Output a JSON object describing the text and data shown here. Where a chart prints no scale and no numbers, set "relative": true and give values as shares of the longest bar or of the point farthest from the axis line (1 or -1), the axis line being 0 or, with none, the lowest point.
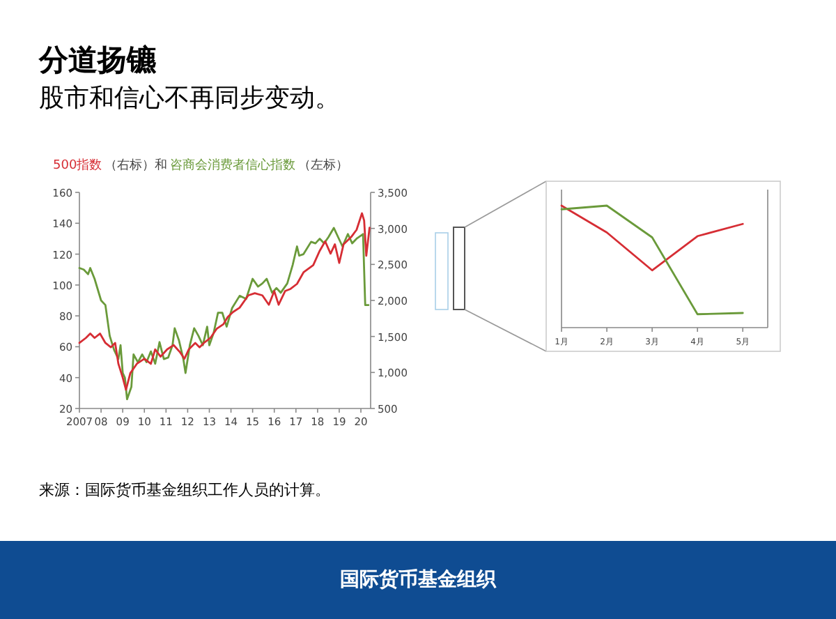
{
  "chart_data": [
    {
      "type": "line",
      "title": "分道扬镳",
      "subtitle": "股市和信心不再同步变动。",
      "legend": "top",
      "annotations": [
        "（右标）和",
        "（左标）",
        "来源：国际货币基金组织工作人员的计算。",
        "国际货币基金组织"
      ],
      "xlim": [
        2007,
        2020.45
      ],
      "xticks": [
        {
          "value": 2007,
          "label": "2007"
        },
        {
          "value": 2008,
          "label": "08"
        },
        {
          "value": 2009,
          "label": "09"
        },
        {
          "value": 2010,
          "label": "10"
        },
        {
          "value": 2011,
          "label": "11"
        },
        {
          "value": 2012,
          "label": "12"
        },
        {
          "value": 2013,
          "label": "13"
        },
        {
          "value": 2014,
          "label": "14"
        },
        {
          "value": 2015,
          "label": "15"
        },
        {
          "value": 2016,
          "label": "16"
        },
        {
          "value": 2017,
          "label": "17"
        },
        {
          "value": 2018,
          "label": "18"
        },
        {
          "value": 2019,
          "label": "19"
        },
        {
          "value": 2020,
          "label": "20"
        }
      ],
      "ylim": [
        20,
        160
      ],
      "yticks": [
        20,
        40,
        60,
        80,
        100,
        120,
        140,
        160
      ],
      "y2lim": [
        500,
        3500
      ],
      "y2ticks": [
        {
          "value": 500,
          "label": "500"
        },
        {
          "value": 1000,
          "label": "1,000"
        },
        {
          "value": 1500,
          "label": "1,500"
        },
        {
          "value": 2000,
          "label": "2,000"
        },
        {
          "value": 2500,
          "label": "2,500"
        },
        {
          "value": 3000,
          "label": "3,000"
        },
        {
          "value": 3500,
          "label": "3,500"
        }
      ],
      "series": [
        {
          "name": "500指数",
          "color": "#d62d34",
          "axis": "y2",
          "x": [
            2007.0,
            2007.3,
            2007.5,
            2007.7,
            2007.95,
            2008.2,
            2008.45,
            2008.65,
            2008.8,
            2009.0,
            2009.15,
            2009.35,
            2009.65,
            2010.0,
            2010.3,
            2010.5,
            2010.75,
            2011.05,
            2011.35,
            2011.65,
            2011.85,
            2012.05,
            2012.35,
            2012.55,
            2012.75,
            2013.05,
            2013.35,
            2013.65,
            2013.85,
            2014.1,
            2014.4,
            2014.8,
            2015.1,
            2015.45,
            2015.75,
            2016.0,
            2016.2,
            2016.5,
            2016.75,
            2017.05,
            2017.35,
            2017.8,
            2018.1,
            2018.35,
            2018.6,
            2018.8,
            2019.0,
            2019.2,
            2019.55,
            2019.8,
            2020.05,
            2020.15,
            2020.25,
            2020.4
          ],
          "values": [
            1410,
            1480,
            1540,
            1480,
            1540,
            1410,
            1350,
            1410,
            1120,
            930,
            760,
            990,
            1120,
            1190,
            1120,
            1320,
            1220,
            1320,
            1380,
            1280,
            1190,
            1320,
            1410,
            1350,
            1410,
            1480,
            1610,
            1670,
            1770,
            1840,
            1900,
            2070,
            2100,
            2070,
            1940,
            2130,
            1940,
            2130,
            2160,
            2230,
            2390,
            2490,
            2690,
            2820,
            2650,
            2780,
            2520,
            2780,
            2880,
            2980,
            3210,
            3110,
            2620,
            3010
          ]
        },
        {
          "name": "咨商会消费者信心指数",
          "color": "#6a9a3a",
          "axis": "y",
          "x": [
            2007.0,
            2007.2,
            2007.4,
            2007.5,
            2007.7,
            2008.0,
            2008.2,
            2008.4,
            2008.6,
            2008.8,
            2008.9,
            2009.0,
            2009.1,
            2009.2,
            2009.4,
            2009.5,
            2009.7,
            2009.9,
            2010.1,
            2010.3,
            2010.5,
            2010.7,
            2010.9,
            2011.1,
            2011.3,
            2011.4,
            2011.6,
            2011.8,
            2011.9,
            2012.1,
            2012.3,
            2012.5,
            2012.7,
            2012.9,
            2013.0,
            2013.2,
            2013.4,
            2013.6,
            2013.8,
            2014.05,
            2014.4,
            2014.7,
            2015.0,
            2015.25,
            2015.45,
            2015.65,
            2015.9,
            2016.1,
            2016.3,
            2016.6,
            2016.85,
            2017.05,
            2017.15,
            2017.35,
            2017.7,
            2017.9,
            2018.1,
            2018.3,
            2018.5,
            2018.75,
            2018.95,
            2019.15,
            2019.4,
            2019.6,
            2019.8,
            2020.1,
            2020.2,
            2020.35
          ],
          "values": [
            111,
            110,
            107,
            111,
            104,
            90,
            87,
            67,
            58,
            52,
            61,
            43,
            40,
            26,
            34,
            55,
            50,
            55,
            50,
            57,
            49,
            63,
            52,
            53,
            61,
            72,
            64,
            52,
            43,
            61,
            72,
            67,
            61,
            73,
            61,
            69,
            82,
            82,
            73,
            85,
            93,
            91,
            104,
            99,
            101,
            104,
            95,
            98,
            95,
            101,
            113,
            125,
            119,
            120,
            128,
            127,
            130,
            127,
            131,
            137,
            131,
            125,
            133,
            127,
            130,
            133,
            87,
            87
          ]
        }
      ]
    },
    {
      "type": "line",
      "relative": true,
      "categories": [
        "1月",
        "2月",
        "3月",
        "4月",
        "5月"
      ],
      "series": [
        {
          "color": "#d62d34",
          "values": [
            1.0,
            0.78,
            0.47,
            0.75,
            0.85
          ]
        },
        {
          "color": "#6a9a3a",
          "values": [
            0.97,
            1.0,
            0.74,
            0.11,
            0.12
          ]
        }
      ]
    }
  ]
}
